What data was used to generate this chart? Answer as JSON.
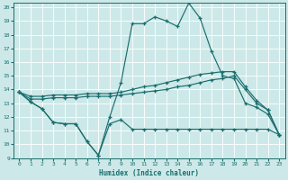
{
  "xlabel": "Humidex (Indice chaleur)",
  "background_color": "#cde8e8",
  "line_color": "#1a6e6e",
  "grid_color": "#b8d8d8",
  "xlim": [
    -0.5,
    23.5
  ],
  "ylim": [
    9,
    20.3
  ],
  "xticks": [
    0,
    1,
    2,
    3,
    4,
    5,
    6,
    7,
    8,
    9,
    10,
    11,
    12,
    13,
    14,
    15,
    16,
    17,
    18,
    19,
    20,
    21,
    22,
    23
  ],
  "yticks": [
    9,
    10,
    11,
    12,
    13,
    14,
    15,
    16,
    17,
    18,
    19,
    20
  ],
  "line_main_x": [
    0,
    1,
    2,
    3,
    4,
    5,
    6,
    7,
    8,
    9,
    10,
    11,
    12,
    13,
    14,
    15,
    16,
    17,
    18,
    19,
    20,
    21,
    22,
    23
  ],
  "line_main_y": [
    13.8,
    13.1,
    12.6,
    11.6,
    11.5,
    11.5,
    10.2,
    9.2,
    12.0,
    14.5,
    18.8,
    18.8,
    19.3,
    19.0,
    18.6,
    20.3,
    19.2,
    16.8,
    15.0,
    14.8,
    13.0,
    12.7,
    12.2,
    10.7
  ],
  "line_low_x": [
    0,
    1,
    2,
    3,
    4,
    5,
    6,
    7,
    8,
    9,
    10,
    11,
    12,
    13,
    14,
    15,
    16,
    17,
    18,
    19,
    20,
    21,
    22,
    23
  ],
  "line_low_y": [
    13.8,
    13.1,
    12.6,
    11.6,
    11.5,
    11.5,
    10.2,
    9.2,
    11.5,
    11.8,
    11.1,
    11.1,
    11.1,
    11.1,
    11.1,
    11.1,
    11.1,
    11.1,
    11.1,
    11.1,
    11.1,
    11.1,
    11.1,
    10.7
  ],
  "line_mid1_x": [
    0,
    1,
    2,
    3,
    4,
    5,
    6,
    7,
    8,
    9,
    10,
    11,
    12,
    13,
    14,
    15,
    16,
    17,
    18,
    19,
    20,
    21,
    22,
    23
  ],
  "line_mid1_y": [
    13.8,
    13.3,
    13.3,
    13.4,
    13.4,
    13.4,
    13.5,
    13.5,
    13.5,
    13.6,
    13.7,
    13.8,
    13.9,
    14.0,
    14.2,
    14.3,
    14.5,
    14.7,
    14.8,
    15.0,
    14.0,
    13.0,
    12.5,
    10.7
  ],
  "line_mid2_x": [
    0,
    1,
    2,
    3,
    4,
    5,
    6,
    7,
    8,
    9,
    10,
    11,
    12,
    13,
    14,
    15,
    16,
    17,
    18,
    19,
    20,
    21,
    22,
    23
  ],
  "line_mid2_y": [
    13.8,
    13.5,
    13.5,
    13.6,
    13.6,
    13.6,
    13.7,
    13.7,
    13.7,
    13.8,
    14.0,
    14.2,
    14.3,
    14.5,
    14.7,
    14.9,
    15.1,
    15.2,
    15.3,
    15.3,
    14.2,
    13.2,
    12.5,
    10.7
  ]
}
